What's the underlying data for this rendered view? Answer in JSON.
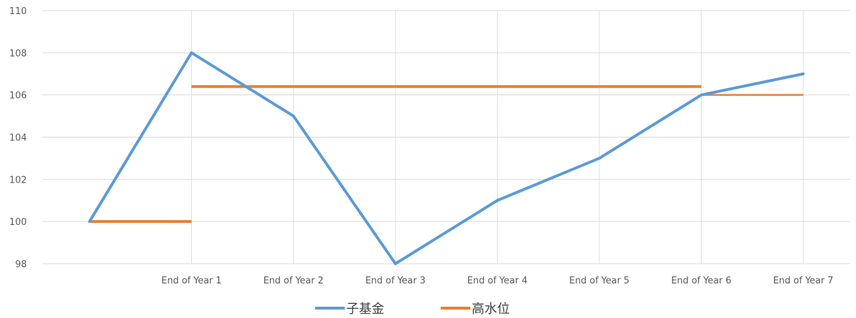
{
  "chart_data": {
    "type": "line",
    "categories": [
      "",
      "End of Year 1",
      "End of Year 2",
      "End of Year 3",
      "End of Year 4",
      "End of Year 5",
      "End of Year 6",
      "End of Year 7"
    ],
    "ylim": [
      98,
      110
    ],
    "yticks": [
      98,
      100,
      102,
      104,
      106,
      108,
      110
    ],
    "grid": true,
    "legend_position": "bottom",
    "series": [
      {
        "name": "子基金",
        "color": "#5B9BD5",
        "values": [
          100,
          108,
          105,
          98,
          101,
          103,
          106,
          107
        ]
      }
    ],
    "high_water_mark": {
      "name": "高水位",
      "color": "#ED7D31",
      "segments": [
        {
          "from": 0,
          "to": 1,
          "value": 100
        },
        {
          "from": 1,
          "to": 6,
          "value": 106.4
        },
        {
          "from": 6,
          "to": 7,
          "value": 106
        }
      ]
    }
  }
}
